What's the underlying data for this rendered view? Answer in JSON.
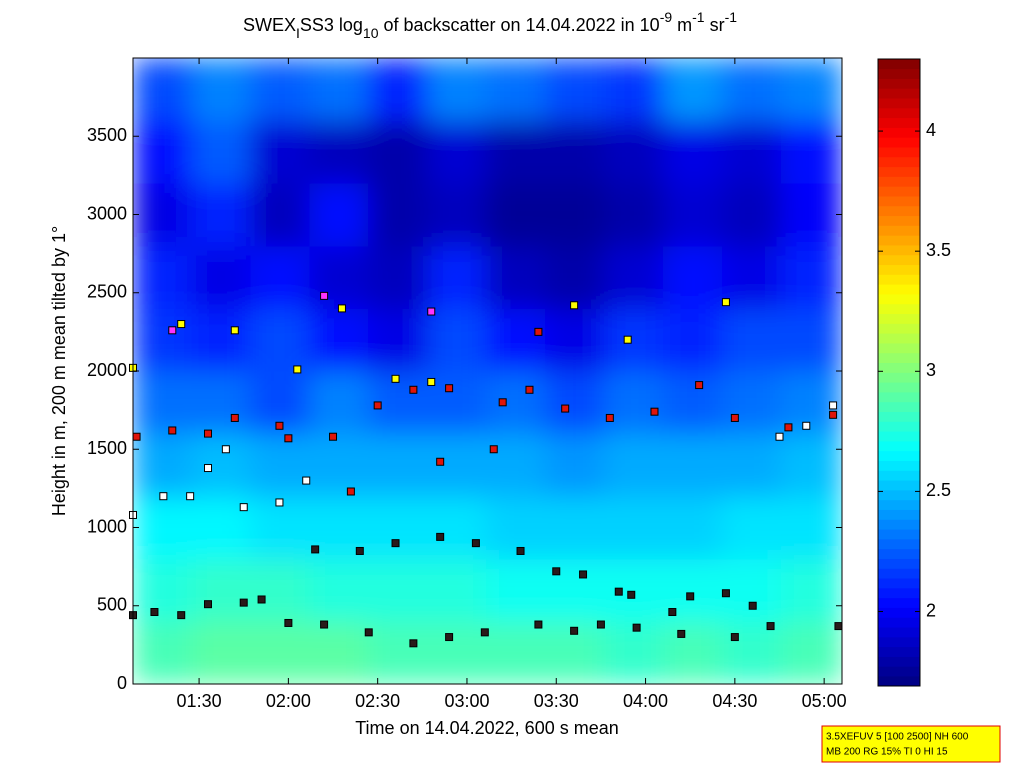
{
  "chart_data": {
    "type": "heatmap",
    "title_parts": [
      {
        "text": "SWEX"
      },
      {
        "text": "I",
        "shift": "sub"
      },
      {
        "text": "SS3 log"
      },
      {
        "text": "10",
        "shift": "sub"
      },
      {
        "text": " of backscatter on 14.04.2022 in 10"
      },
      {
        "text": "-9",
        "shift": "super"
      },
      {
        "text": " m"
      },
      {
        "text": "-1",
        "shift": "super"
      },
      {
        "text": " sr"
      },
      {
        "text": "-1",
        "shift": "super"
      }
    ],
    "xlabel": "Time on 14.04.2022, 600 s mean",
    "ylabel": "Height in m, 200 m mean tilted by 1°",
    "xlim": [
      1.13,
      5.1
    ],
    "ylim": [
      0,
      4000
    ],
    "xticks": [
      {
        "value": 1.5,
        "label": "01:30"
      },
      {
        "value": 2,
        "label": "02:00"
      },
      {
        "value": 2.5,
        "label": "02:30"
      },
      {
        "value": 3,
        "label": "03:00"
      },
      {
        "value": 3.5,
        "label": "03:30"
      },
      {
        "value": 4,
        "label": "04:00"
      },
      {
        "value": 4.5,
        "label": "04:30"
      },
      {
        "value": 5,
        "label": "05:00"
      }
    ],
    "yticks": [
      0,
      500,
      1000,
      1500,
      2000,
      2500,
      3000,
      3500
    ],
    "colormap": "jet",
    "clim": [
      1.69,
      4.3
    ],
    "cticks": [
      2,
      2.5,
      3,
      3.5,
      4
    ],
    "xbins": [
      1.13,
      1.46,
      1.79,
      2.12,
      2.45,
      2.78,
      3.11,
      3.44,
      3.77,
      4.1,
      4.43,
      4.76,
      5.1
    ],
    "ybins": [
      0,
      400,
      800,
      1200,
      1600,
      2000,
      2400,
      2800,
      3200,
      3600,
      4000
    ],
    "z": [
      [
        2.85,
        2.9,
        2.9,
        2.9,
        2.85,
        2.85,
        2.85,
        2.85,
        2.8,
        2.85,
        2.8,
        2.85
      ],
      [
        2.75,
        2.8,
        2.8,
        2.75,
        2.75,
        2.75,
        2.7,
        2.7,
        2.7,
        2.7,
        2.7,
        2.75
      ],
      [
        2.65,
        2.65,
        2.6,
        2.6,
        2.6,
        2.6,
        2.55,
        2.55,
        2.55,
        2.55,
        2.6,
        2.6
      ],
      [
        2.45,
        2.5,
        2.45,
        2.45,
        2.45,
        2.45,
        2.45,
        2.4,
        2.45,
        2.45,
        2.45,
        2.5
      ],
      [
        2.3,
        2.3,
        2.2,
        2.35,
        2.25,
        2.25,
        2.3,
        2.2,
        2.3,
        2.25,
        2.3,
        2.35
      ],
      [
        2.15,
        2.1,
        2.2,
        2.05,
        1.95,
        2.2,
        2.05,
        1.95,
        2.15,
        2.1,
        2.2,
        2.2
      ],
      [
        2.1,
        1.95,
        2.05,
        1.9,
        1.85,
        2.1,
        1.85,
        1.8,
        1.9,
        2.05,
        1.95,
        2.1
      ],
      [
        1.95,
        2.1,
        1.85,
        2.05,
        1.8,
        1.85,
        1.75,
        1.75,
        1.8,
        1.9,
        1.85,
        2.0
      ],
      [
        2.05,
        2.25,
        1.9,
        1.85,
        1.8,
        1.9,
        1.8,
        1.8,
        1.85,
        1.95,
        1.9,
        2.05
      ],
      [
        2.2,
        2.35,
        2.25,
        2.3,
        2.1,
        2.35,
        2.3,
        2.2,
        2.15,
        2.4,
        2.3,
        2.35
      ]
    ],
    "series": [
      {
        "color": "#2a1a1a",
        "x": [
          1.13,
          1.25,
          1.4,
          1.55,
          1.75,
          1.85,
          2.0,
          2.2,
          2.45,
          2.7,
          2.9,
          3.1,
          3.4,
          3.6,
          3.75,
          3.95,
          4.2,
          4.5,
          4.7,
          5.08
        ],
        "y": [
          440,
          460,
          440,
          510,
          520,
          540,
          390,
          380,
          330,
          260,
          300,
          330,
          380,
          340,
          380,
          360,
          320,
          300,
          370,
          370
        ]
      },
      {
        "color": "#2a1a1a",
        "x": [
          2.15,
          2.4,
          2.6,
          2.85,
          3.05,
          3.3,
          3.5,
          3.65,
          3.85,
          3.92,
          4.15,
          4.25,
          4.45,
          4.6
        ],
        "y": [
          860,
          850,
          900,
          940,
          900,
          850,
          720,
          700,
          590,
          570,
          460,
          560,
          580,
          500
        ]
      },
      {
        "color": "#ffffff",
        "x": [
          1.13,
          1.3,
          1.45,
          1.55,
          1.65,
          1.75,
          1.95,
          2.1,
          4.75,
          4.9,
          5.05
        ],
        "y": [
          1080,
          1200,
          1200,
          1380,
          1500,
          1130,
          1160,
          1300,
          1580,
          1650,
          1780
        ]
      },
      {
        "color": "#e0140a",
        "x": [
          1.15,
          1.35,
          1.55,
          1.7,
          1.95,
          2.25,
          2.5,
          2.7,
          2.9,
          3.2,
          3.35,
          3.55,
          3.8,
          4.05,
          4.3,
          4.5,
          4.8,
          5.05,
          2.85,
          3.15,
          3.4,
          2.35,
          2.0
        ],
        "y": [
          1580,
          1620,
          1600,
          1700,
          1650,
          1580,
          1780,
          1880,
          1890,
          1800,
          1880,
          1760,
          1700,
          1740,
          1910,
          1700,
          1640,
          1720,
          1420,
          1500,
          2250,
          1230,
          1570
        ]
      },
      {
        "color": "#ffff00",
        "x": [
          1.13,
          1.4,
          1.7,
          2.05,
          2.3,
          2.6,
          2.8,
          3.6,
          3.9,
          4.45
        ],
        "y": [
          2020,
          2300,
          2260,
          2010,
          2400,
          1950,
          1930,
          2420,
          2200,
          2440
        ]
      },
      {
        "color": "#ff33ff",
        "x": [
          1.35,
          2.2,
          2.8
        ],
        "y": [
          2260,
          2480,
          2380
        ]
      }
    ]
  },
  "info_box": {
    "lines": [
      "3.5XEFUV 5 [100 2500] NH 600",
      "MB 200 RG 15% TI 0 HI 15"
    ]
  }
}
